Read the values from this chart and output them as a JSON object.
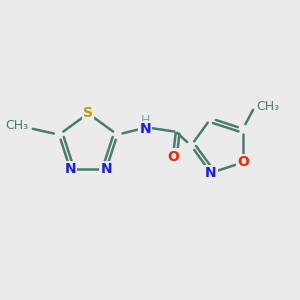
{
  "background_color": "#ebebeb",
  "bond_color": "#4a7c6f",
  "bond_width": 1.8,
  "atoms": {
    "S": {
      "color": "#b8a000"
    },
    "N": {
      "color": "#1a1aff"
    },
    "O": {
      "color": "#ff2000"
    },
    "C": {
      "color": "#4a7c6f"
    },
    "H": {
      "color": "#6aabaa"
    }
  },
  "figsize": [
    3.0,
    3.0
  ],
  "dpi": 100
}
